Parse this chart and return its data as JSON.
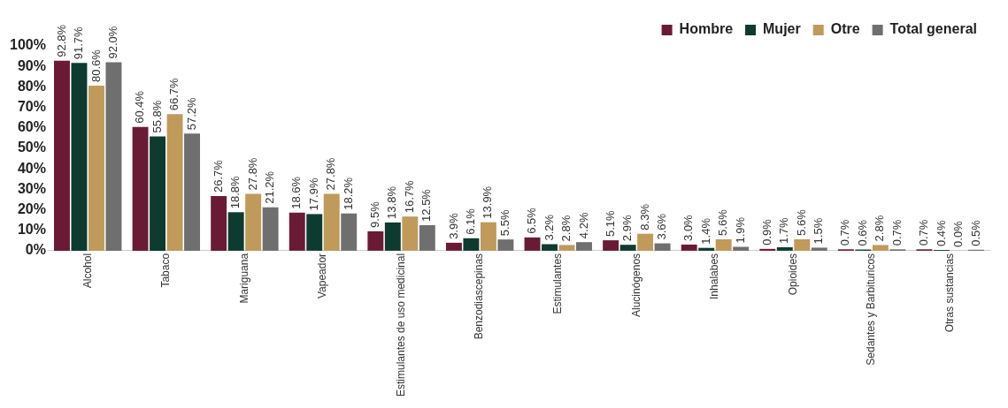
{
  "chart_data": {
    "type": "bar",
    "categories": [
      "Alcohol",
      "Tabaco",
      "Mariguana",
      "Vapeador",
      "Estimulantes de uso medicinal",
      "Benzodiascepinas",
      "Estimulantes",
      "Alucinógenos",
      "Inhalabes",
      "Opioides",
      "Sedantes y Barbituricos",
      "Otras sustancias"
    ],
    "series": [
      {
        "name": "Hombre",
        "color": "#6b1a35",
        "values": [
          92.8,
          60.4,
          26.7,
          18.6,
          9.5,
          3.9,
          6.5,
          5.1,
          3.0,
          0.9,
          0.7,
          0.7
        ],
        "value_labels": [
          "92.8%",
          "60.4%",
          "26.7%",
          "18.6%",
          "9.5%",
          "3.9%",
          "6.5%",
          "5.1%",
          "3.0%",
          "0.9%",
          "0.7%",
          "0.7%"
        ]
      },
      {
        "name": "Mujer",
        "color": "#0e3b2f",
        "values": [
          91.7,
          55.8,
          18.8,
          17.9,
          13.8,
          6.1,
          3.2,
          2.9,
          1.4,
          1.7,
          0.6,
          0.4
        ],
        "value_labels": [
          "91.7%",
          "55.8%",
          "18.8%",
          "17.9%",
          "13.8%",
          "6.1%",
          "3.2%",
          "2.9%",
          "1.4%",
          "1.7%",
          "0.6%",
          "0.4%"
        ]
      },
      {
        "name": "Otre",
        "color": "#bf9a5b",
        "values": [
          80.6,
          66.7,
          27.8,
          27.8,
          16.7,
          13.9,
          2.8,
          8.3,
          5.6,
          5.6,
          2.8,
          0.0
        ],
        "value_labels": [
          "80.6%",
          "66.7%",
          "27.8%",
          "27.8%",
          "16.7%",
          "13.9%",
          "2.8%",
          "8.3%",
          "5.6%",
          "5.6%",
          "2.8%",
          "0.0%"
        ]
      },
      {
        "name": "Total general",
        "color": "#6f6f6f",
        "values": [
          92.0,
          57.2,
          21.2,
          18.2,
          12.5,
          5.5,
          4.2,
          3.6,
          1.9,
          1.5,
          0.7,
          0.5
        ],
        "value_labels": [
          "92.0%",
          "57.2%",
          "21.2%",
          "18.2%",
          "12.5%",
          "5.5%",
          "4.2%",
          "3.6%",
          "1.9%",
          "1.5%",
          "0.7%",
          "0.5%"
        ]
      }
    ],
    "ylim": [
      0,
      100
    ],
    "yticks": [
      {
        "value": 0,
        "label": "0%"
      },
      {
        "value": 10,
        "label": "10%"
      },
      {
        "value": 20,
        "label": "20%"
      },
      {
        "value": 30,
        "label": "30%"
      },
      {
        "value": 40,
        "label": "40%"
      },
      {
        "value": 50,
        "label": "50%"
      },
      {
        "value": 60,
        "label": "60%"
      },
      {
        "value": 70,
        "label": "70%"
      },
      {
        "value": 80,
        "label": "80%"
      },
      {
        "value": 90,
        "label": "90%"
      },
      {
        "value": 100,
        "label": "100%"
      }
    ],
    "legend": "top right"
  }
}
